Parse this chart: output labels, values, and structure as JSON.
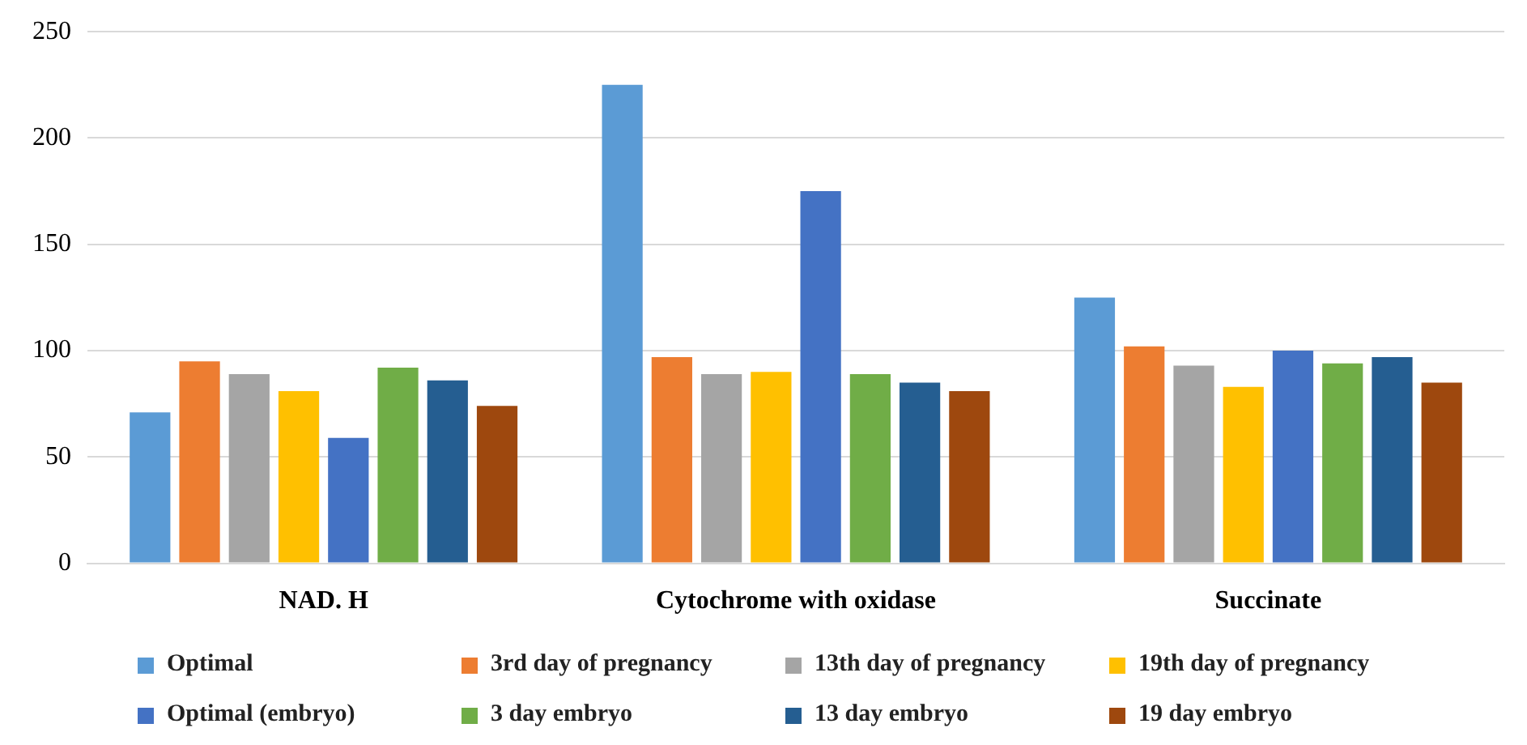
{
  "chart_data": {
    "type": "bar",
    "categories": [
      "NAD. H",
      "Cytochrome with oxidase",
      "Succinate"
    ],
    "series": [
      {
        "name": "Optimal",
        "color": "#5b9bd5",
        "values": [
          71,
          225,
          125
        ]
      },
      {
        "name": "3rd day of pregnancy",
        "color": "#ed7d31",
        "values": [
          95,
          97,
          102
        ]
      },
      {
        "name": "13th day of pregnancy",
        "color": "#a5a5a5",
        "values": [
          89,
          89,
          93
        ]
      },
      {
        "name": "19th day of pregnancy",
        "color": "#ffc000",
        "values": [
          81,
          90,
          83
        ]
      },
      {
        "name": "Optimal (embryo)",
        "color": "#4472c4",
        "values": [
          59,
          175,
          100
        ]
      },
      {
        "name": "3 day embryo",
        "color": "#70ad47",
        "values": [
          92,
          89,
          94
        ]
      },
      {
        "name": "13 day embryo",
        "color": "#255e91",
        "values": [
          86,
          85,
          97
        ]
      },
      {
        "name": "19 day embryo",
        "color": "#9e480e",
        "values": [
          74,
          81,
          85
        ]
      }
    ],
    "ylim": [
      0,
      250
    ],
    "yticks": [
      0,
      50,
      100,
      150,
      200,
      250
    ],
    "grid": "y",
    "legend": "bottom"
  }
}
